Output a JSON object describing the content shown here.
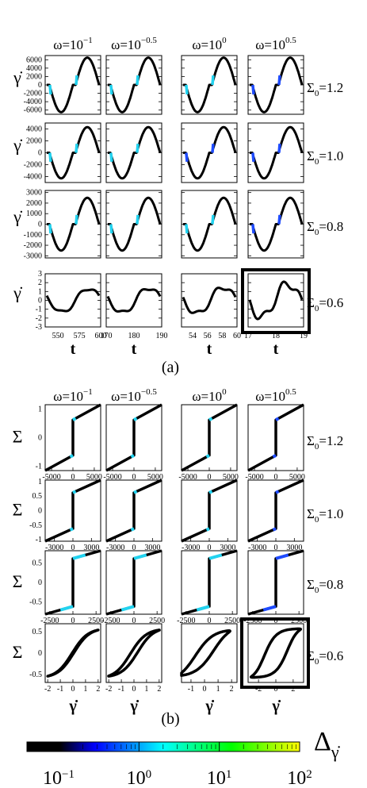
{
  "figure": {
    "column_titles": [
      {
        "base": "ω=10",
        "exp": "−1"
      },
      {
        "base": "ω=10",
        "exp": "−0.5"
      },
      {
        "base": "ω=10",
        "exp": "0"
      },
      {
        "base": "ω=10",
        "exp": "0.5"
      }
    ],
    "row_labels": [
      {
        "sym": "Σ",
        "sub": "0",
        "val": "=1.2"
      },
      {
        "sym": "Σ",
        "sub": "0",
        "val": "=1.0"
      },
      {
        "sym": "Σ",
        "sub": "0",
        "val": "=0.8"
      },
      {
        "sym": "Σ",
        "sub": "0",
        "val": "=0.6"
      }
    ],
    "panel_a_caption": "(a)",
    "panel_b_caption": "(b)",
    "colorbar": {
      "label_base": "Δ",
      "label_sub": "γ̇",
      "ticks": [
        {
          "base": "10",
          "exp": "−1"
        },
        {
          "base": "10",
          "exp": "0"
        },
        {
          "base": "10",
          "exp": "1"
        },
        {
          "base": "10",
          "exp": "2"
        }
      ],
      "colors": [
        "#000000",
        "#0000ff",
        "#00ffff",
        "#00ff00",
        "#ffff00"
      ]
    }
  },
  "chart_data": [
    {
      "type": "line",
      "panel": "(a)",
      "ylabel": "γ̇",
      "xlabel": "t",
      "rows": [
        {
          "yticks": [
            "6000",
            "4000",
            "2000",
            "0",
            "-2000",
            "-4000",
            "-6000"
          ],
          "ylim": [
            -7000,
            7000
          ],
          "tick_values": [
            6000,
            4000,
            2000,
            0,
            -2000,
            -4000,
            -6000
          ],
          "peak": 6500
        },
        {
          "yticks": [
            "4000",
            "2000",
            "0",
            "-2000",
            "-4000"
          ],
          "ylim": [
            -5000,
            5000
          ],
          "tick_values": [
            4000,
            2000,
            0,
            -2000,
            -4000
          ],
          "peak": 4300
        },
        {
          "yticks": [
            "3000",
            "2000",
            "1000",
            "0",
            "-1000",
            "-2000",
            "-3000"
          ],
          "ylim": [
            -3200,
            3200
          ],
          "tick_values": [
            3000,
            2000,
            1000,
            0,
            -1000,
            -2000,
            -3000
          ],
          "peak": 2500
        },
        {
          "yticks": [
            "3",
            "2",
            "1",
            "0",
            "-1",
            "-2",
            "-3"
          ],
          "ylim": [
            -3,
            3
          ],
          "tick_values": [
            3,
            2,
            1,
            0,
            -1,
            -2,
            -3
          ],
          "peak": 2.2
        }
      ],
      "bottom_xticks": [
        {
          "labels": [
            "550",
            "575",
            "600"
          ],
          "range": [
            535,
            600
          ]
        },
        {
          "labels": [
            "170",
            "180",
            "190"
          ],
          "range": [
            170,
            190
          ]
        },
        {
          "labels": [
            "54",
            "56",
            "58",
            "60"
          ],
          "range": [
            52.5,
            60
          ]
        },
        {
          "labels": [
            "17",
            "18",
            "19"
          ],
          "range": [
            17,
            19
          ]
        }
      ],
      "highlighted_panel": {
        "row": 3,
        "col": 3
      }
    },
    {
      "type": "line",
      "panel": "(b)",
      "ylabel": "Σ",
      "xlabel": "γ̇",
      "rows": [
        {
          "yticks": [
            "1",
            "0",
            "-1"
          ],
          "tick_values": [
            1,
            0,
            -1
          ],
          "ylim": [
            -1.15,
            1.15
          ],
          "xticks": [
            [
              "-5000",
              "0",
              "5000"
            ],
            [
              "-5000",
              "0",
              "5000"
            ],
            [
              "-5000",
              "0",
              "5000"
            ],
            [
              "-5000",
              "0",
              "5000"
            ]
          ],
          "xrange": 6500,
          "jump": 0.62
        },
        {
          "yticks": [
            "1",
            "0.5",
            "0",
            "-0.5",
            "-1"
          ],
          "tick_values": [
            1,
            0.5,
            0,
            -0.5,
            -1
          ],
          "ylim": [
            -1.05,
            1.05
          ],
          "xticks": [
            [
              "-3000",
              "0",
              "3000"
            ],
            [
              "-3000",
              "0",
              "3000"
            ],
            [
              "-3000",
              "0",
              "3000"
            ],
            [
              "-3000",
              "0",
              "3000"
            ]
          ],
          "xrange": 4500,
          "jump": 0.62
        },
        {
          "yticks": [
            "0.5",
            "0",
            "-0.5"
          ],
          "tick_values": [
            0.5,
            0,
            -0.5
          ],
          "ylim": [
            -0.82,
            0.82
          ],
          "xticks": [
            [
              "-2500",
              "0",
              "2500"
            ],
            [
              "-2500",
              "0",
              "2500"
            ],
            [
              "-2500",
              "0",
              "2500"
            ],
            [
              "-2500",
              "0",
              "2500"
            ]
          ],
          "xrange": 3000,
          "jump": 0.62
        },
        {
          "yticks": [
            "0.5",
            "0",
            "-0.5"
          ],
          "tick_values": [
            0.5,
            0,
            -0.5
          ],
          "ylim": [
            -0.68,
            0.68
          ],
          "xticks": [
            [
              "-2",
              "-1",
              "0",
              "1",
              "2"
            ],
            [
              "-2",
              "-1",
              "0",
              "1",
              "2"
            ],
            [
              "-1",
              "0",
              "1",
              "2"
            ],
            [
              "-2",
              "0",
              "2"
            ]
          ],
          "xtick_values": [
            [
              -2,
              -1,
              0,
              1,
              2
            ],
            [
              -2,
              -1,
              0,
              1,
              2
            ],
            [
              -1,
              0,
              1,
              2
            ],
            [
              -2,
              0,
              2
            ]
          ],
          "xlims": [
            [
              -2.2,
              2.2
            ],
            [
              -2.2,
              2.2
            ],
            [
              -1.7,
              2.4
            ],
            [
              -3.2,
              3.2
            ]
          ]
        }
      ],
      "highlighted_panel": {
        "row": 3,
        "col": 3
      }
    }
  ]
}
